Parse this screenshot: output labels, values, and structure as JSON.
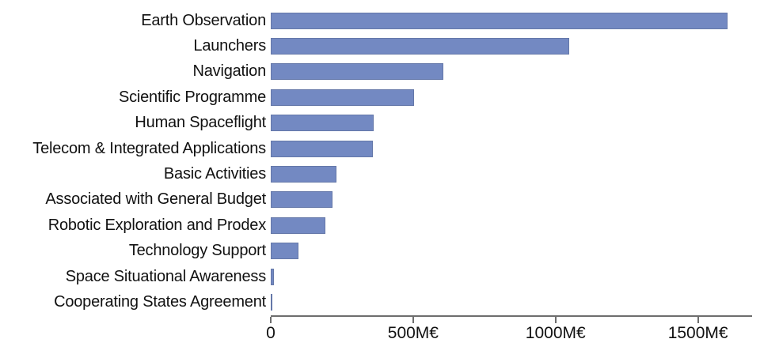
{
  "chart_data": {
    "type": "bar",
    "orientation": "horizontal",
    "title": "",
    "xlabel": "",
    "ylabel": "",
    "unit": "M€",
    "grid": false,
    "legend_position": "none",
    "categories": [
      "Earth Observation",
      "Launchers",
      "Navigation",
      "Scientific Programme",
      "Human Spaceflight",
      "Telecom & Integrated Applications",
      "Basic Activities",
      "Associated with General Budget",
      "Robotic Exploration and Prodex",
      "Technology Support",
      "Space Situational Awareness",
      "Cooperating States Agreement"
    ],
    "values": [
      1603,
      1047,
      606,
      503,
      361,
      358,
      231,
      217,
      192,
      97,
      10,
      4
    ],
    "xlim": [
      0,
      1690
    ],
    "x_ticks": [
      {
        "value": 0,
        "label": "0"
      },
      {
        "value": 500,
        "label": "500M€"
      },
      {
        "value": 1000,
        "label": "1000M€"
      },
      {
        "value": 1500,
        "label": "1500M€"
      }
    ],
    "bar_color": "#7389c2",
    "axis_color": "#6e6e6e",
    "label_color": "#111111"
  }
}
